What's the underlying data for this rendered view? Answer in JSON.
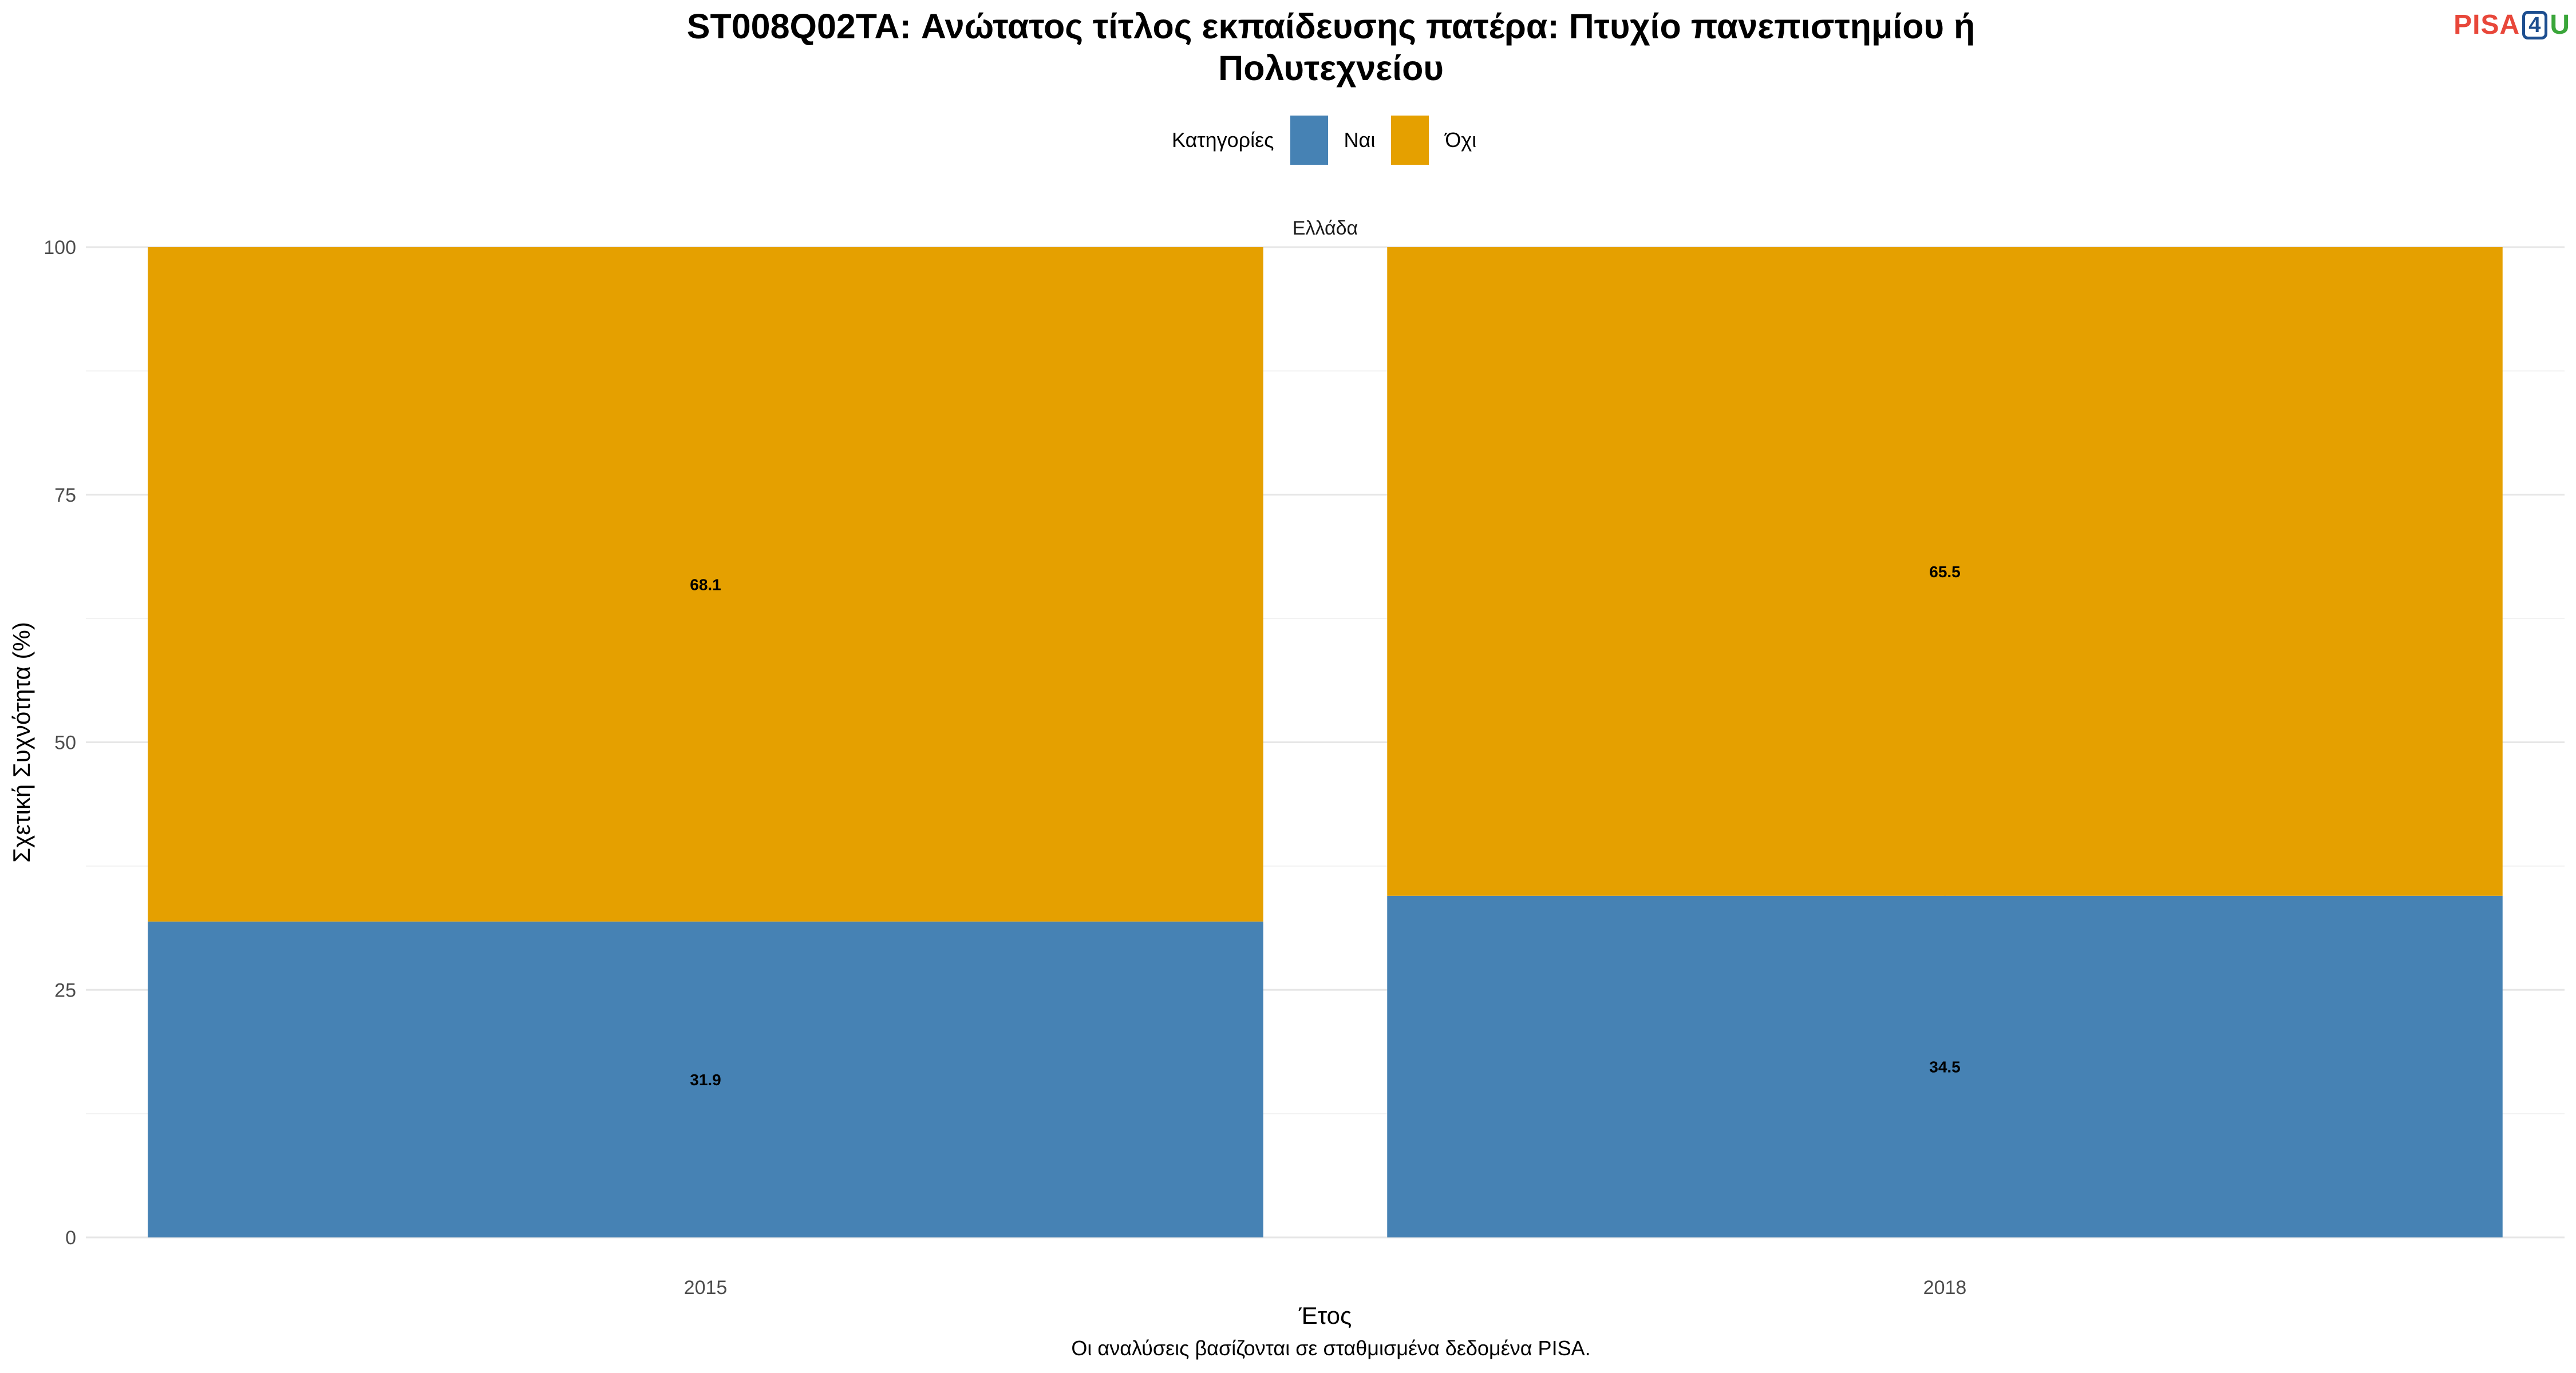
{
  "title_lines": [
    "ST008Q02TA: Ανώτατος τίτλος εκπαίδευσης πατέρα: Πτυχίο πανεπιστημίου ή",
    "Πολυτεχνείου"
  ],
  "logo": {
    "part1": "PISA",
    "part2": "4",
    "part3": "U"
  },
  "legend": {
    "title": "Κατηγορίες",
    "items": [
      {
        "label": "Ναι",
        "color": "#4682b4"
      },
      {
        "label": "Όχι",
        "color": "#e5a000"
      }
    ]
  },
  "caption": "Οι αναλύσεις βασίζονται σε σταθμισμένα δεδομένα PISA.",
  "chart_data": {
    "type": "bar",
    "stacked": true,
    "facet": "Ελλάδα",
    "categories": [
      "2015",
      "2018"
    ],
    "series": [
      {
        "name": "Ναι",
        "color": "#4682b4",
        "values": [
          31.9,
          34.5
        ]
      },
      {
        "name": "Όχι",
        "color": "#e5a000",
        "values": [
          68.1,
          65.5
        ]
      }
    ],
    "xlabel": "Έτος",
    "ylabel": "Σχετική Συχνότητα (%)",
    "ylim": [
      0,
      100
    ],
    "yticks": [
      0,
      25,
      50,
      75,
      100
    ],
    "grid": true,
    "legend_position": "top"
  }
}
